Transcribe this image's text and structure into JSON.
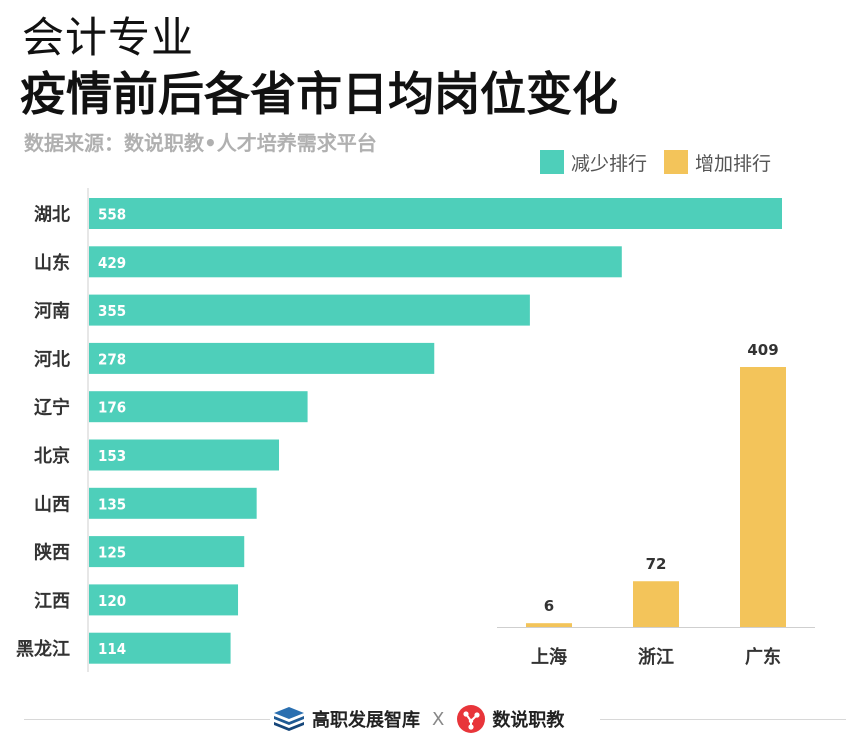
{
  "header": {
    "title_line1": "会计专业",
    "title_line2": "疫情前后各省市日均岗位变化",
    "source": "数据来源：数说职教•人才培养需求平台"
  },
  "legend": {
    "decrease_label": "减少排行",
    "increase_label": "增加排行"
  },
  "colors": {
    "decrease": "#4ecfba",
    "increase": "#f3c45a"
  },
  "chart_data": [
    {
      "type": "bar",
      "orientation": "horizontal",
      "series_name": "减少排行",
      "categories": [
        "湖北",
        "山东",
        "河南",
        "河北",
        "辽宁",
        "北京",
        "山西",
        "陕西",
        "江西",
        "黑龙江"
      ],
      "values": [
        558,
        429,
        355,
        278,
        176,
        153,
        135,
        125,
        120,
        114
      ],
      "xlim": [
        0,
        558
      ]
    },
    {
      "type": "bar",
      "orientation": "vertical",
      "series_name": "增加排行",
      "categories": [
        "上海",
        "浙江",
        "广东"
      ],
      "values": [
        6,
        72,
        409
      ],
      "ylim": [
        0,
        409
      ]
    }
  ],
  "footer": {
    "brand1": "高职发展智库",
    "separator": "X",
    "brand2": "数说职教"
  }
}
